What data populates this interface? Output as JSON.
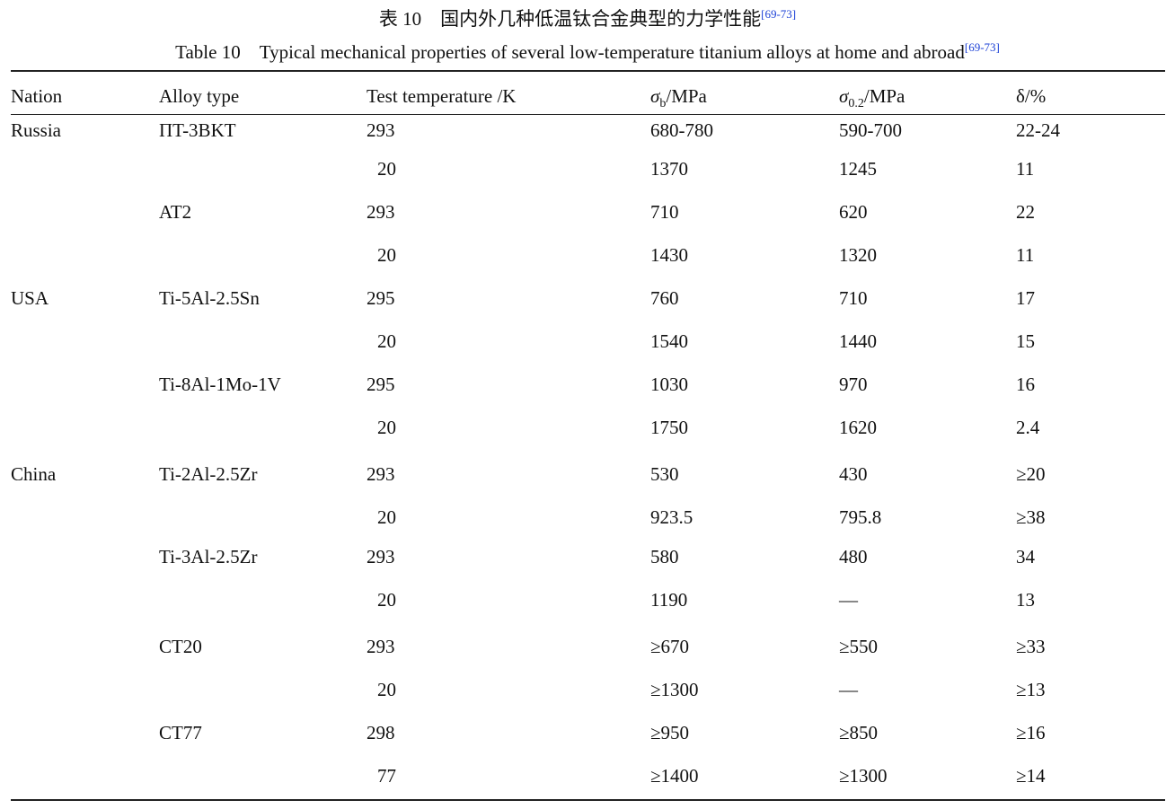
{
  "caption_cn": {
    "text": "表 10　国内外几种低温钛合金典型的力学性能",
    "ref": "[69-73]"
  },
  "caption_en": {
    "text": "Table 10　Typical mechanical properties of several low-temperature titanium alloys at home and abroad",
    "ref": "[69-73]"
  },
  "headers": {
    "nation": "Nation",
    "alloy": "Alloy type",
    "temp": "Test temperature /K",
    "sigma_b_sym": "σ",
    "sigma_b_sub": "b",
    "sigma_b_unit": "/MPa",
    "sigma_02_sym": "σ",
    "sigma_02_sub": "0.2",
    "sigma_02_unit": "/MPa",
    "delta": "δ/%"
  },
  "rows": [
    {
      "nation": "Russia",
      "alloy": "ΠT-3BKT",
      "temp": "293",
      "sb": "680-780",
      "s02": "590-700",
      "d": "22-24"
    },
    {
      "nation": "",
      "alloy": "",
      "temp": "20",
      "sb": "1370",
      "s02": "1245",
      "d": "11"
    },
    {
      "nation": "",
      "alloy": "AT2",
      "temp": "293",
      "sb": "710",
      "s02": "620",
      "d": "22"
    },
    {
      "nation": "",
      "alloy": "",
      "temp": "20",
      "sb": "1430",
      "s02": "1320",
      "d": "11"
    },
    {
      "nation": "USA",
      "alloy": "Ti-5Al-2.5Sn",
      "temp": "295",
      "sb": "760",
      "s02": "710",
      "d": "17"
    },
    {
      "nation": "",
      "alloy": "",
      "temp": "20",
      "sb": "1540",
      "s02": "1440",
      "d": "15"
    },
    {
      "nation": "",
      "alloy": "Ti-8Al-1Mo-1V",
      "temp": "295",
      "sb": "1030",
      "s02": "970",
      "d": "16"
    },
    {
      "nation": "",
      "alloy": "",
      "temp": "20",
      "sb": "1750",
      "s02": "1620",
      "d": "2.4"
    },
    {
      "nation": "China",
      "alloy": "Ti-2Al-2.5Zr",
      "temp": "293",
      "sb": "530",
      "s02": "430",
      "d": "≥20"
    },
    {
      "nation": "",
      "alloy": "",
      "temp": "20",
      "sb": "923.5",
      "s02": "795.8",
      "d": "≥38"
    },
    {
      "nation": "",
      "alloy": "Ti-3Al-2.5Zr",
      "temp": "293",
      "sb": "580",
      "s02": "480",
      "d": "34"
    },
    {
      "nation": "",
      "alloy": "",
      "temp": "20",
      "sb": "1190",
      "s02": "—",
      "d": "13"
    },
    {
      "nation": "",
      "alloy": "CT20",
      "temp": "293",
      "sb": "≥670",
      "s02": "≥550",
      "d": "≥33"
    },
    {
      "nation": "",
      "alloy": "",
      "temp": "20",
      "sb": "≥1300",
      "s02": "—",
      "d": "≥13"
    },
    {
      "nation": "",
      "alloy": "CT77",
      "temp": "298",
      "sb": "≥950",
      "s02": "≥850",
      "d": "≥16"
    },
    {
      "nation": "",
      "alloy": "",
      "temp": "77",
      "sb": "≥1400",
      "s02": "≥1300",
      "d": "≥14"
    }
  ]
}
